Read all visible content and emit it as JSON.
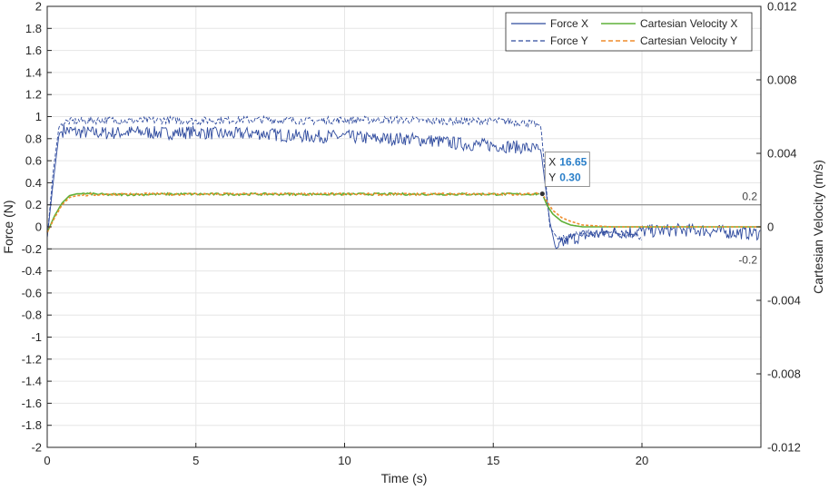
{
  "chart_data": {
    "type": "line",
    "xlabel": "Time (s)",
    "ylabel_left": "Force (N)",
    "ylabel_right": "Cartesian Velocity (m/s)",
    "xlim": [
      0,
      24
    ],
    "ylim_left": [
      -2,
      2
    ],
    "ylim_right": [
      -0.012,
      0.012
    ],
    "x_ticks": [
      "0",
      "5",
      "10",
      "15",
      "20"
    ],
    "x_tick_values": [
      0,
      5,
      10,
      15,
      20
    ],
    "y_left_ticks": [
      "2",
      "1.8",
      "1.6",
      "1.4",
      "1.2",
      "1",
      "0.8",
      "0.6",
      "0.4",
      "0.2",
      "0",
      "-0.2",
      "-0.4",
      "-0.6",
      "-0.8",
      "-1",
      "-1.2",
      "-1.4",
      "-1.6",
      "-1.8",
      "-2"
    ],
    "y_right_ticks": [
      "0.012",
      "0.008",
      "0.004",
      "0",
      "-0.004",
      "-0.008",
      "-0.012"
    ],
    "grid": true,
    "legend": "top-right",
    "reference_lines": [
      {
        "y": 0.2,
        "label": "0.2"
      },
      {
        "y": -0.2,
        "label": "-0.2"
      }
    ],
    "datatip": {
      "x_label": "X",
      "x_value": "16.65",
      "y_label": "Y",
      "y_value": "0.30",
      "x": 16.65,
      "y": 0.3
    },
    "series": [
      {
        "name": "Force X",
        "axis": "left",
        "color": "#2e4a9e",
        "dash": "solid",
        "x": [
          0,
          0.2,
          0.4,
          0.6,
          1,
          2,
          3,
          4,
          5,
          6,
          7,
          8,
          9,
          10,
          11,
          12,
          13,
          14,
          15,
          16,
          16.6,
          16.9,
          17.1,
          17.5,
          18,
          19,
          20,
          21,
          22,
          23,
          24
        ],
        "y": [
          -0.1,
          0.4,
          0.85,
          0.88,
          0.86,
          0.85,
          0.86,
          0.85,
          0.86,
          0.84,
          0.85,
          0.83,
          0.82,
          0.82,
          0.8,
          0.8,
          0.78,
          0.75,
          0.74,
          0.72,
          0.7,
          0.05,
          -0.2,
          -0.12,
          -0.08,
          -0.05,
          -0.04,
          -0.03,
          -0.03,
          -0.05,
          -0.06
        ]
      },
      {
        "name": "Force Y",
        "axis": "left",
        "color": "#2e4a9e",
        "dash": "dashed",
        "x": [
          0,
          0.2,
          0.4,
          0.6,
          1,
          2,
          3,
          4,
          5,
          6,
          7,
          8,
          9,
          10,
          11,
          12,
          13,
          14,
          15,
          16,
          16.6,
          16.9,
          17.2,
          18,
          19,
          20
        ],
        "y": [
          -0.1,
          0.5,
          0.92,
          0.95,
          0.96,
          0.97,
          0.96,
          0.97,
          0.96,
          0.97,
          0.97,
          0.97,
          0.96,
          0.97,
          0.97,
          0.97,
          0.96,
          0.96,
          0.96,
          0.95,
          0.92,
          0.0,
          -0.12,
          -0.06,
          -0.05,
          -0.1
        ]
      },
      {
        "name": "Cartesian Velocity X",
        "axis": "right",
        "color": "#5fb038",
        "dash": "solid",
        "x": [
          0,
          0.25,
          0.5,
          0.75,
          1,
          1.5,
          2,
          4,
          6,
          8,
          10,
          12,
          14,
          16,
          16.65,
          16.8,
          17,
          17.3,
          17.6,
          18,
          19,
          20,
          22,
          24
        ],
        "y": [
          -0.0003,
          0.0006,
          0.0013,
          0.0017,
          0.0018,
          0.0018,
          0.00175,
          0.00178,
          0.00178,
          0.00178,
          0.00178,
          0.00178,
          0.00178,
          0.00178,
          0.0018,
          0.0012,
          0.0007,
          0.0003,
          0.0001,
          0.0,
          0.0,
          0.0,
          0.0,
          0.0
        ]
      },
      {
        "name": "Cartesian Velocity Y",
        "axis": "right",
        "color": "#ef8c2c",
        "dash": "dashed",
        "x": [
          0,
          0.25,
          0.5,
          0.75,
          1,
          1.5,
          2,
          4,
          6,
          8,
          10,
          12,
          14,
          16,
          16.65,
          16.8,
          17,
          17.3,
          17.6,
          18,
          19,
          20,
          22,
          24
        ],
        "y": [
          -0.0003,
          0.0005,
          0.0012,
          0.0016,
          0.0017,
          0.00175,
          0.00178,
          0.00178,
          0.00178,
          0.00178,
          0.00178,
          0.00178,
          0.00178,
          0.00178,
          0.0018,
          0.0014,
          0.0009,
          0.0005,
          0.0003,
          0.0001,
          0.0,
          0.0,
          0.0,
          0.0
        ]
      }
    ]
  }
}
